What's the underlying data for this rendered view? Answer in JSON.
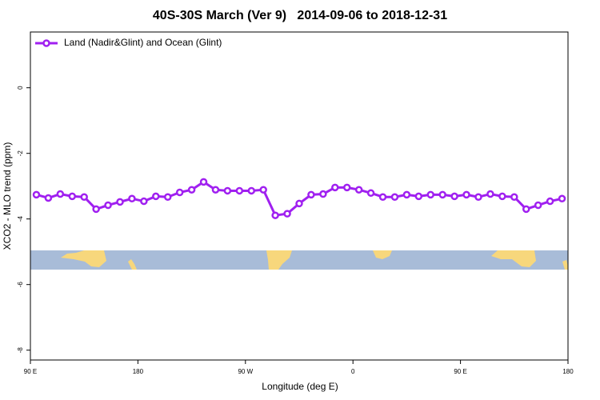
{
  "chart_data": {
    "type": "line",
    "title": "40S-30S March (Ver 9)   2014-09-06 to 2018-12-31",
    "xlabel": "Longitude (deg E)",
    "ylabel": "XCO2 - MLO trend (ppm)",
    "x": [
      95,
      105,
      115,
      125,
      135,
      145,
      155,
      165,
      175,
      185,
      195,
      205,
      215,
      225,
      235,
      245,
      255,
      265,
      275,
      285,
      295,
      305,
      315,
      325,
      335,
      345,
      355,
      365,
      375,
      385,
      395,
      405,
      415,
      425,
      435,
      445,
      455,
      465,
      475,
      485,
      495,
      505,
      515,
      525,
      535
    ],
    "series": [
      {
        "name": "Land (Nadir&Glint) and Ocean (Glint)",
        "color": "#a020f0",
        "values": [
          -3.26,
          -3.36,
          -3.24,
          -3.31,
          -3.33,
          -3.7,
          -3.58,
          -3.48,
          -3.38,
          -3.46,
          -3.31,
          -3.33,
          -3.19,
          -3.11,
          -2.87,
          -3.11,
          -3.14,
          -3.14,
          -3.14,
          -3.11,
          -3.89,
          -3.84,
          -3.53,
          -3.26,
          -3.24,
          -3.04,
          -3.04,
          -3.11,
          -3.21,
          -3.33,
          -3.33,
          -3.26,
          -3.31,
          -3.26,
          -3.26,
          -3.31,
          -3.26,
          -3.33,
          -3.24,
          -3.31,
          -3.33,
          -3.7,
          -3.58,
          -3.46,
          -3.38
        ]
      }
    ],
    "xlim": [
      90,
      540
    ],
    "xticks": [
      {
        "value": 90,
        "label": "90 E"
      },
      180,
      {
        "value": 270,
        "label": "90 W"
      },
      {
        "value": 360,
        "label": "0"
      },
      {
        "value": 450,
        "label": "90 E"
      },
      {
        "value": 540,
        "label": "180"
      }
    ],
    "ylim": [
      -8.3,
      1.7
    ],
    "yticks": [
      0,
      -2,
      -4,
      -6,
      -8
    ],
    "legend": "top-left"
  }
}
